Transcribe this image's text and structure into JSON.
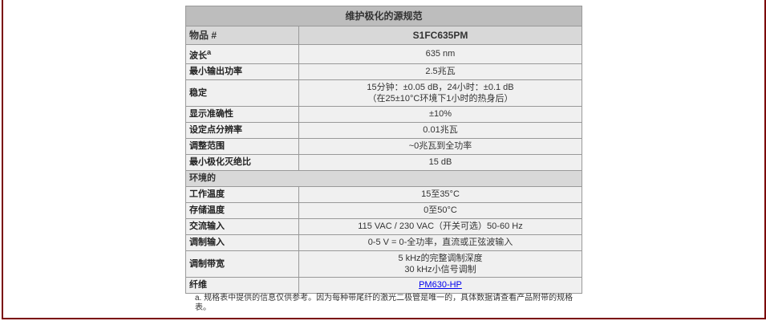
{
  "table": {
    "title": "维护极化的源规范",
    "header_label": "物品 #",
    "header_value": "S1FC635PM",
    "rows": [
      {
        "label": "波长",
        "sup": "a",
        "value": "635 nm"
      },
      {
        "label": "最小输出功率",
        "value": "2.5兆瓦"
      },
      {
        "label": "稳定",
        "value": "15分钟：±0.05 dB，24小时：±0.1 dB",
        "value2": "（在25±10°C环境下1小时的热身后）"
      },
      {
        "label": "显示准确性",
        "value": "±10%"
      },
      {
        "label": "设定点分辨率",
        "value": "0.01兆瓦"
      },
      {
        "label": "调整范围",
        "value": "~0兆瓦到全功率"
      },
      {
        "label": "最小极化灭绝比",
        "value": "15 dB"
      }
    ],
    "section": "环境的",
    "rows2": [
      {
        "label": "工作温度",
        "value": "15至35°C"
      },
      {
        "label": "存储温度",
        "value": "0至50°C"
      },
      {
        "label": "交流输入",
        "value": "115 VAC / 230 VAC（开关可选）50-60 Hz"
      },
      {
        "label": "调制输入",
        "value": "0-5 V = 0-全功率，直流或正弦波输入"
      },
      {
        "label": "调制带宽",
        "value": "5 kHz的完整调制深度",
        "value2": "30 kHz小信号调制"
      },
      {
        "label": "纤维",
        "link": "PM630-HP"
      }
    ]
  },
  "footnote": "a. 规格表中提供的信息仅供参考。因为每种带尾纤的激光二极管是唯一的，具体数据请查看产品附带的规格表。",
  "colors": {
    "border": "#7a0000",
    "title_bg": "#bdbdbd",
    "header_bg": "#d8d8d8",
    "cell_bg": "#f0f0f0",
    "link": "#0000ee"
  }
}
